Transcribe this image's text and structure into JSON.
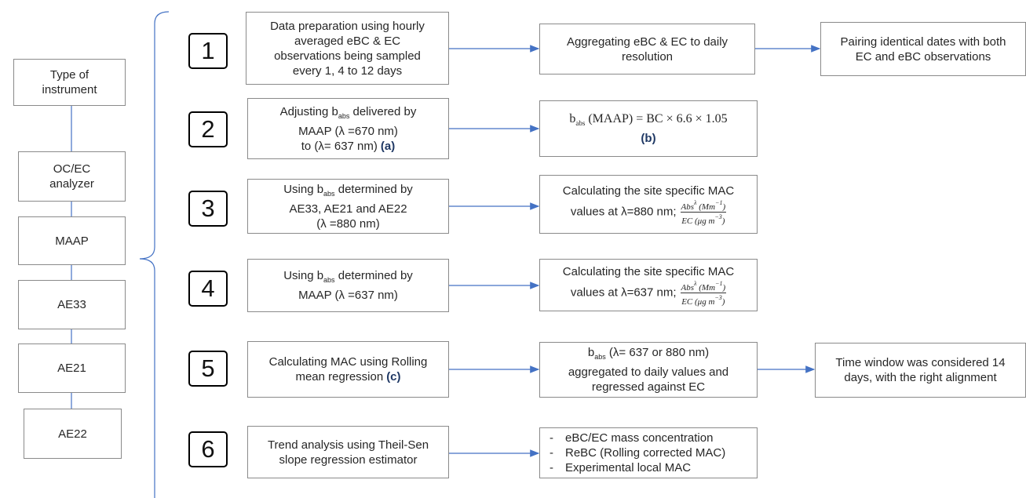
{
  "instruments": {
    "title": "Type of instrument",
    "items": [
      "OC/EC analyzer",
      "MAAP",
      "AE33",
      "AE21",
      "AE22"
    ]
  },
  "list_marker": "-",
  "steps": [
    {
      "number": "1",
      "process": {
        "lines": [
          "Data preparation using hourly",
          "averaged eBC & EC",
          "observations being sampled",
          "every 1, 4 to 12 days"
        ]
      },
      "output": {
        "lines": [
          "Aggregating eBC & EC to daily",
          "resolution"
        ]
      },
      "result": {
        "lines": [
          "Pairing identical dates with both",
          "EC and eBC observations"
        ]
      }
    },
    {
      "number": "2",
      "process": {
        "lines": [
          [
            "Adjusting b",
            "abs",
            " delivered by"
          ],
          "MAAP (λ =670 nm)",
          [
            "to (λ= 637 nm)",
            "(a)"
          ]
        ]
      },
      "output": {
        "formula": [
          "b",
          "abs",
          " (MAAP) = BC × 6.6 × 1.05"
        ],
        "note": "(b)"
      }
    },
    {
      "number": "3",
      "process": {
        "lines": [
          [
            "Using b",
            "abs",
            " determined by"
          ],
          "AE33, AE21 and AE22",
          "(λ =880 nm)"
        ]
      },
      "output": {
        "lines": [
          "Calculating the site specific MAC",
          "values at λ=880 nm;"
        ],
        "fraction": {
          "numerator": [
            "Abs",
            "λ",
            " (Mm",
            "−1",
            ")"
          ],
          "denominator": [
            "EC (μg m",
            "−3",
            ")"
          ]
        }
      }
    },
    {
      "number": "4",
      "process": {
        "lines": [
          [
            "Using b",
            "abs",
            " determined by"
          ],
          "MAAP (λ =637 nm)"
        ]
      },
      "output": {
        "lines": [
          "Calculating the site specific MAC",
          "values at λ=637 nm;"
        ],
        "fraction": {
          "numerator": [
            "Abs",
            "λ",
            " (Mm",
            "−1",
            ")"
          ],
          "denominator": [
            "EC (μg m",
            "−3",
            ")"
          ]
        }
      }
    },
    {
      "number": "5",
      "process": {
        "lines": [
          "Calculating MAC using Rolling",
          [
            "mean regression",
            "(c)"
          ]
        ]
      },
      "output": {
        "lines": [
          [
            "b",
            "abs",
            " (λ= 637 or 880 nm)"
          ],
          "aggregated to daily values and",
          "regressed against EC"
        ]
      },
      "result": {
        "lines": [
          "Time window was considered 14",
          "days, with the right alignment"
        ]
      }
    },
    {
      "number": "6",
      "process": {
        "lines": [
          "Trend analysis using Theil-Sen",
          "slope regression estimator"
        ]
      },
      "output": {
        "items": [
          "eBC/EC mass concentration",
          "ReBC (Rolling corrected MAC)",
          "Experimental local MAC"
        ]
      }
    }
  ]
}
